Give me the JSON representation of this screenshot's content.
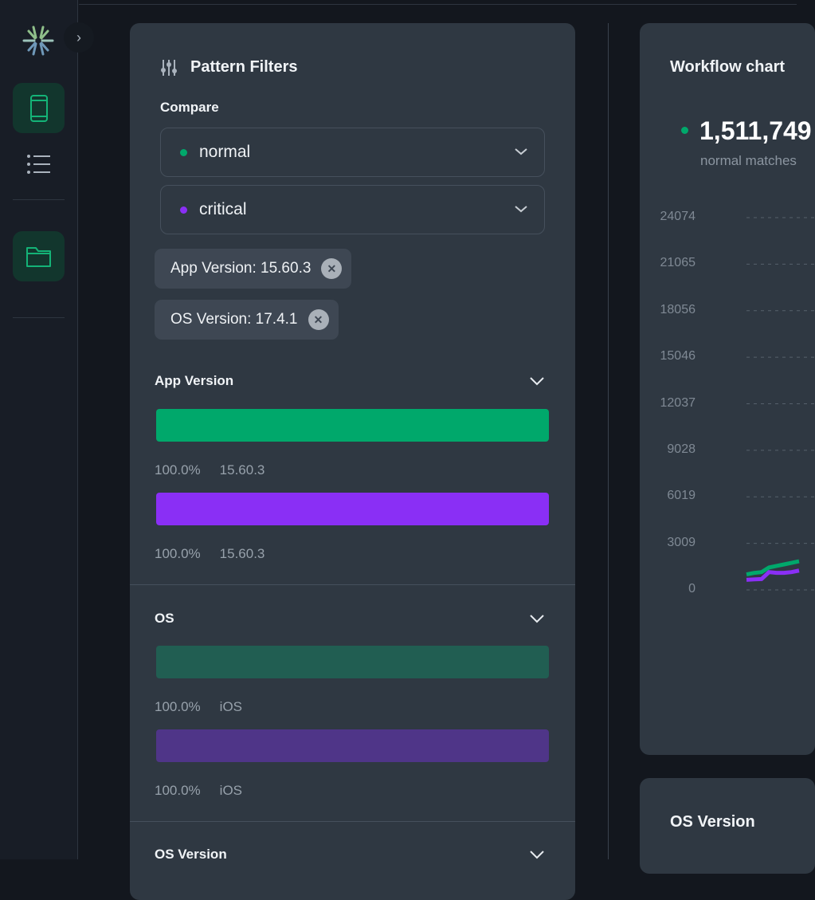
{
  "sidebar": {
    "logo": "asterisk-logo",
    "expand_icon": "chevron-right-icon",
    "items": [
      {
        "icon": "phone-icon",
        "active": true
      },
      {
        "icon": "list-icon",
        "active": false
      },
      {
        "icon": "folder-icon",
        "active": true
      }
    ]
  },
  "colors": {
    "normal": "#00a86b",
    "critical": "#8a2ff5",
    "normal_dim": "#215e52",
    "critical_dim": "#4f3588",
    "background": "#13171e",
    "card": "#2f3842"
  },
  "filters": {
    "title": "Pattern Filters",
    "compare_label": "Compare",
    "compare": [
      {
        "value": "normal",
        "color": "#00a86b"
      },
      {
        "value": "critical",
        "color": "#8a2ff5"
      }
    ],
    "chips": [
      {
        "label": "App Version: 15.60.3"
      },
      {
        "label": "OS Version: 17.4.1"
      }
    ],
    "sections": [
      {
        "title": "App Version",
        "rows": [
          {
            "percent": "100.0%",
            "value": "15.60.3",
            "fill": 100
          },
          {
            "percent": "100.0%",
            "value": "15.60.3",
            "fill": 100
          }
        ]
      },
      {
        "title": "OS",
        "rows": [
          {
            "percent": "100.0%",
            "value": "iOS",
            "fill": 100
          },
          {
            "percent": "100.0%",
            "value": "iOS",
            "fill": 100
          }
        ]
      },
      {
        "title": "OS Version"
      }
    ]
  },
  "workflow": {
    "title": "Workflow chart",
    "total": "1,511,749",
    "total_label": "normal matches"
  },
  "os_version_card": {
    "title": "OS Version"
  },
  "chart_data": {
    "type": "line",
    "yticks": [
      0,
      3009,
      6019,
      9028,
      12037,
      15046,
      18056,
      21065,
      24074
    ],
    "ylim": [
      0,
      24074
    ],
    "grid": true,
    "series": [
      {
        "key": "normal",
        "color": "#00a86b",
        "values": [
          1000,
          1100,
          1150,
          1450,
          1550,
          1650,
          1750,
          1850
        ]
      },
      {
        "key": "critical",
        "color": "#8a2ff5",
        "values": [
          650,
          680,
          700,
          1150,
          1100,
          1100,
          1150,
          1250
        ]
      }
    ]
  }
}
